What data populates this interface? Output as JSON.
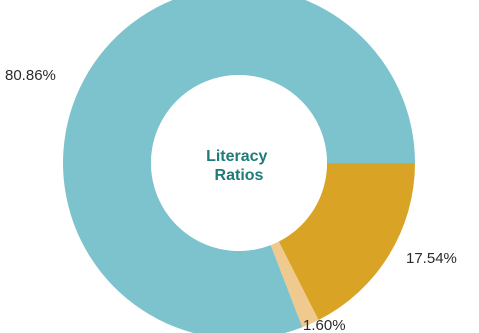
{
  "chart_data": {
    "type": "pie",
    "variant": "donut",
    "center_title_lines": [
      "Literacy",
      "Ratios"
    ],
    "slices": [
      {
        "value": 17.54,
        "label": "17.54%",
        "color": "#d9a325"
      },
      {
        "value": 1.6,
        "label": "1.60%",
        "color": "#f0c98f"
      },
      {
        "value": 80.86,
        "label": "80.86%",
        "color": "#7dc3ce"
      }
    ],
    "start_angle_deg": 0,
    "direction": "clockwise"
  },
  "colors": {
    "title": "#1e7b76",
    "background": "#ffffff"
  }
}
